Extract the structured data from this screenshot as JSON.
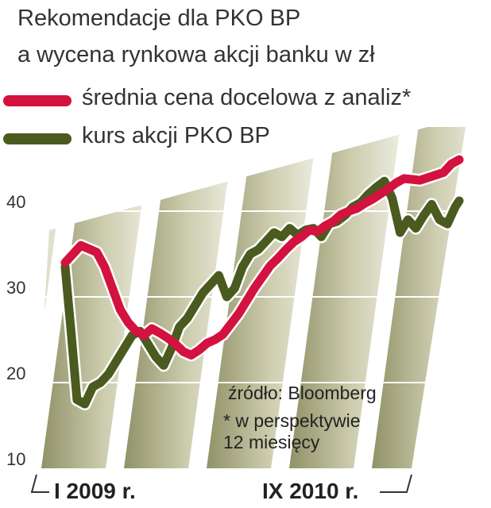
{
  "header": {
    "title_line1": "Rekomendacje dla PKO BP",
    "title_line2": "a wycena rynkowa akcji banku w zł"
  },
  "legend": [
    {
      "label": "średnia cena docelowa z analiz*",
      "color": "#d3123f"
    },
    {
      "label": "kurs akcji PKO BP",
      "color": "#4b5a1e"
    }
  ],
  "source": {
    "line1": "źródło: Bloomberg",
    "line2": "* w perspektywie",
    "line3": "12 miesięcy"
  },
  "chart_data": {
    "type": "line",
    "ylim": [
      10,
      46
    ],
    "yticks": [
      "10",
      "20",
      "30",
      "40"
    ],
    "x_labels": [
      "I 2009 r.",
      "IX 2010 r."
    ],
    "grid": true,
    "series": [
      {
        "name": "średnia cena docelowa z analiz*",
        "color": "#d3123f",
        "points": [
          [
            0.0,
            34.0
          ],
          [
            0.04,
            36.0
          ],
          [
            0.08,
            35.2
          ],
          [
            0.1,
            33.5
          ],
          [
            0.12,
            31.0
          ],
          [
            0.14,
            28.5
          ],
          [
            0.16,
            27.0
          ],
          [
            0.18,
            26.0
          ],
          [
            0.2,
            25.5
          ],
          [
            0.22,
            26.3
          ],
          [
            0.24,
            25.8
          ],
          [
            0.26,
            25.2
          ],
          [
            0.28,
            24.5
          ],
          [
            0.3,
            23.6
          ],
          [
            0.32,
            23.2
          ],
          [
            0.34,
            23.8
          ],
          [
            0.36,
            24.6
          ],
          [
            0.38,
            25.0
          ],
          [
            0.4,
            25.6
          ],
          [
            0.42,
            26.8
          ],
          [
            0.44,
            28.0
          ],
          [
            0.46,
            29.5
          ],
          [
            0.48,
            31.0
          ],
          [
            0.5,
            32.3
          ],
          [
            0.52,
            33.6
          ],
          [
            0.54,
            34.5
          ],
          [
            0.56,
            35.5
          ],
          [
            0.58,
            36.4
          ],
          [
            0.6,
            37.0
          ],
          [
            0.62,
            37.8
          ],
          [
            0.64,
            37.6
          ],
          [
            0.66,
            38.3
          ],
          [
            0.68,
            38.8
          ],
          [
            0.7,
            39.6
          ],
          [
            0.72,
            40.0
          ],
          [
            0.74,
            40.3
          ],
          [
            0.76,
            40.9
          ],
          [
            0.78,
            41.4
          ],
          [
            0.8,
            42.0
          ],
          [
            0.82,
            42.6
          ],
          [
            0.84,
            43.3
          ],
          [
            0.86,
            43.8
          ],
          [
            0.88,
            43.7
          ],
          [
            0.9,
            43.6
          ],
          [
            0.92,
            43.9
          ],
          [
            0.94,
            44.2
          ],
          [
            0.96,
            44.5
          ],
          [
            0.98,
            45.5
          ],
          [
            1.0,
            46.0
          ]
        ]
      },
      {
        "name": "kurs akcji PKO BP",
        "color": "#4b5a1e",
        "points": [
          [
            0.0,
            33.5
          ],
          [
            0.015,
            26.0
          ],
          [
            0.03,
            18.0
          ],
          [
            0.05,
            17.5
          ],
          [
            0.07,
            19.5
          ],
          [
            0.09,
            20.0
          ],
          [
            0.11,
            21.0
          ],
          [
            0.13,
            22.5
          ],
          [
            0.15,
            24.0
          ],
          [
            0.17,
            25.5
          ],
          [
            0.19,
            26.0
          ],
          [
            0.21,
            24.5
          ],
          [
            0.23,
            23.0
          ],
          [
            0.25,
            22.0
          ],
          [
            0.27,
            24.0
          ],
          [
            0.29,
            26.5
          ],
          [
            0.31,
            27.5
          ],
          [
            0.33,
            29.0
          ],
          [
            0.35,
            30.5
          ],
          [
            0.37,
            31.5
          ],
          [
            0.39,
            32.5
          ],
          [
            0.41,
            30.0
          ],
          [
            0.43,
            31.0
          ],
          [
            0.45,
            33.5
          ],
          [
            0.47,
            35.0
          ],
          [
            0.49,
            35.5
          ],
          [
            0.51,
            36.5
          ],
          [
            0.53,
            37.5
          ],
          [
            0.55,
            37.0
          ],
          [
            0.57,
            38.0
          ],
          [
            0.59,
            37.2
          ],
          [
            0.61,
            37.8
          ],
          [
            0.63,
            38.0
          ],
          [
            0.65,
            37.0
          ],
          [
            0.67,
            38.5
          ],
          [
            0.69,
            38.8
          ],
          [
            0.71,
            39.5
          ],
          [
            0.73,
            40.5
          ],
          [
            0.75,
            41.0
          ],
          [
            0.77,
            42.0
          ],
          [
            0.79,
            42.8
          ],
          [
            0.81,
            43.5
          ],
          [
            0.83,
            41.5
          ],
          [
            0.85,
            37.5
          ],
          [
            0.87,
            39.0
          ],
          [
            0.89,
            38.0
          ],
          [
            0.91,
            39.5
          ],
          [
            0.93,
            40.8
          ],
          [
            0.95,
            39.0
          ],
          [
            0.97,
            38.5
          ],
          [
            0.99,
            40.5
          ],
          [
            1.0,
            41.2
          ]
        ]
      }
    ]
  }
}
